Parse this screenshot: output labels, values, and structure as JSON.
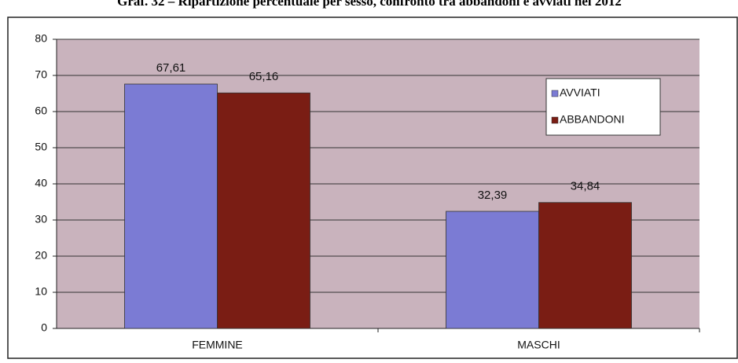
{
  "chart_data": {
    "type": "bar",
    "title": "Graf. 32 – Ripartizione percentuale per sesso, confronto tra abbandoni e avviati nel 2012",
    "categories": [
      "FEMMINE",
      "MASCHI"
    ],
    "series": [
      {
        "name": "AVVIATI",
        "color": "#7b7bd4",
        "values": [
          67.61,
          32.39
        ],
        "value_labels": [
          "67,61",
          "32,39"
        ]
      },
      {
        "name": "ABBANDONI",
        "color": "#7a1d14",
        "values": [
          65.16,
          34.84
        ],
        "value_labels": [
          "65,16",
          "34,84"
        ]
      }
    ],
    "ylim": [
      0,
      80
    ],
    "yticks": [
      0,
      10,
      20,
      30,
      40,
      50,
      60,
      70,
      80
    ],
    "grid": true,
    "legend": "upper right"
  }
}
